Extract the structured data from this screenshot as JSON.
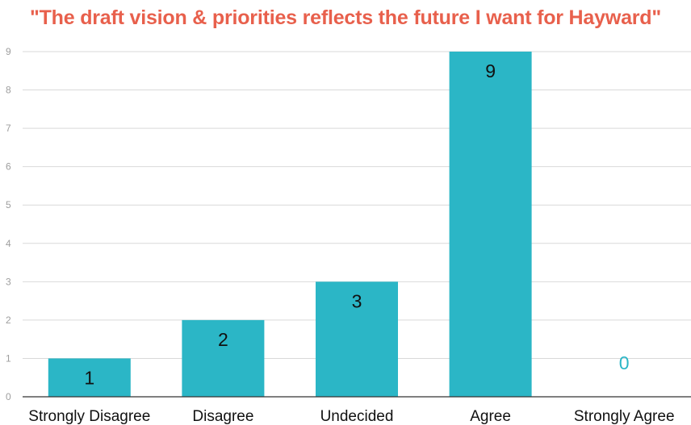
{
  "chart_data": {
    "type": "bar",
    "title": "\"The draft vision & priorities reflects the future I want for Hayward\"",
    "xlabel": "",
    "ylabel": "",
    "categories": [
      "Strongly Disagree",
      "Disagree",
      "Undecided",
      "Agree",
      "Strongly Agree"
    ],
    "values": [
      1,
      2,
      3,
      9,
      0
    ],
    "data_labels": [
      "1",
      "2",
      "3",
      "9",
      "0"
    ],
    "ylim": [
      0,
      9
    ],
    "yticks": [
      "0",
      "1",
      "2",
      "3",
      "4",
      "5",
      "6",
      "7",
      "8",
      "9"
    ],
    "grid": true,
    "legend": "none"
  },
  "colors": {
    "title": "#e8604c",
    "bar": "#2bb6c6",
    "data_label": "#111111",
    "zero_label": "#2bb6c6",
    "grid": "#d9d9d9",
    "axis": "#333333"
  }
}
